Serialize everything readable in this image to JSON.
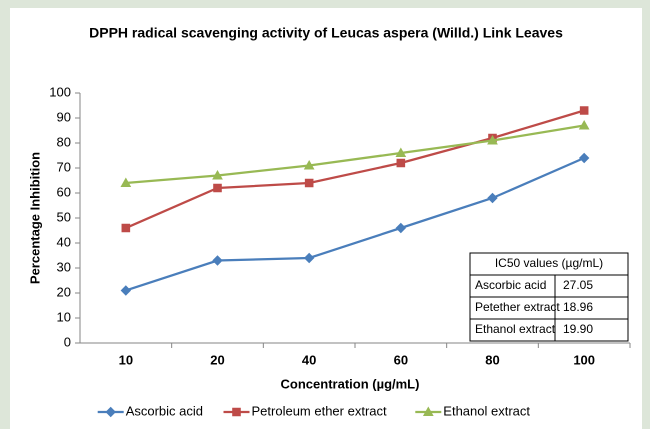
{
  "chart_data": {
    "type": "line",
    "title": "DPPH radical scavenging activity of Leucas aspera (Willd.) Link Leaves",
    "x_label": "Concentration (µg/mL)",
    "y_label": "Percentage Inhibition",
    "categories": [
      "10",
      "20",
      "40",
      "60",
      "80",
      "100"
    ],
    "series": [
      {
        "name": "Ascorbic acid",
        "color": "#4a7ebb",
        "marker": "diamond",
        "values": [
          21,
          33,
          34,
          46,
          58,
          74
        ]
      },
      {
        "name": "Petroleum ether extract",
        "color": "#be4b48",
        "marker": "square",
        "values": [
          46,
          62,
          64,
          72,
          82,
          93
        ]
      },
      {
        "name": "Ethanol extract",
        "color": "#98b954",
        "marker": "triangle",
        "values": [
          64,
          67,
          71,
          76,
          81,
          87
        ]
      }
    ],
    "ylim": [
      0,
      100
    ],
    "yticks": [
      0,
      10,
      20,
      30,
      40,
      50,
      60,
      70,
      80,
      90,
      100
    ],
    "grid": false,
    "legend": "bottom"
  },
  "inset_table": {
    "header": "IC50 values (µg/mL)",
    "rows": [
      [
        "Ascorbic acid",
        "27.05"
      ],
      [
        "Petether extract",
        "18.96"
      ],
      [
        "Ethanol extract",
        "19.90"
      ]
    ]
  }
}
